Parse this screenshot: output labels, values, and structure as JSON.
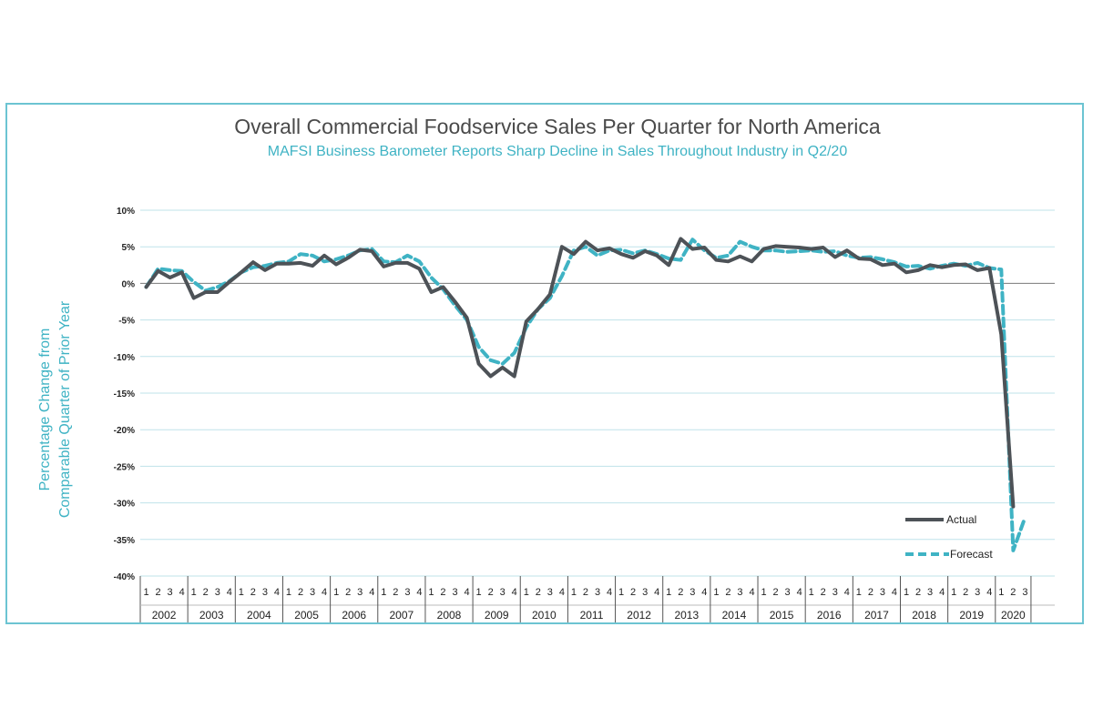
{
  "chart_data": {
    "type": "line",
    "title": "Overall Commercial Foodservice Sales Per Quarter for North America",
    "subtitle": "MAFSI Business Barometer Reports Sharp Decline in Sales Throughout Industry in Q2/20",
    "ylabel_line1": "Percentage Change from",
    "ylabel_line2": "Comparable Quarter of Prior Year",
    "ylim": [
      -40,
      10
    ],
    "yticks": [
      10,
      5,
      0,
      -5,
      -10,
      -15,
      -20,
      -25,
      -30,
      -35,
      -40
    ],
    "ytick_labels": [
      "10%",
      "5%",
      "0%",
      "-5%",
      "-10%",
      "-15%",
      "-20%",
      "-25%",
      "-30%",
      "-35%",
      "-40%"
    ],
    "grid": true,
    "legend_position": "bottom-right",
    "years": [
      {
        "label": "2002",
        "quarters": [
          "1",
          "2",
          "3",
          "4"
        ]
      },
      {
        "label": "2003",
        "quarters": [
          "1",
          "2",
          "3",
          "4"
        ]
      },
      {
        "label": "2004",
        "quarters": [
          "1",
          "2",
          "3",
          "4"
        ]
      },
      {
        "label": "2005",
        "quarters": [
          "1",
          "2",
          "3",
          "4"
        ]
      },
      {
        "label": "2006",
        "quarters": [
          "1",
          "2",
          "3",
          "4"
        ]
      },
      {
        "label": "2007",
        "quarters": [
          "1",
          "2",
          "3",
          "4"
        ]
      },
      {
        "label": "2008",
        "quarters": [
          "1",
          "2",
          "3",
          "4"
        ]
      },
      {
        "label": "2009",
        "quarters": [
          "1",
          "2",
          "3",
          "4"
        ]
      },
      {
        "label": "2010",
        "quarters": [
          "1",
          "2",
          "3",
          "4"
        ]
      },
      {
        "label": "2011",
        "quarters": [
          "1",
          "2",
          "3",
          "4"
        ]
      },
      {
        "label": "2012",
        "quarters": [
          "1",
          "2",
          "3",
          "4"
        ]
      },
      {
        "label": "2013",
        "quarters": [
          "1",
          "2",
          "3",
          "4"
        ]
      },
      {
        "label": "2014",
        "quarters": [
          "1",
          "2",
          "3",
          "4"
        ]
      },
      {
        "label": "2015",
        "quarters": [
          "1",
          "2",
          "3",
          "4"
        ]
      },
      {
        "label": "2016",
        "quarters": [
          "1",
          "2",
          "3",
          "4"
        ]
      },
      {
        "label": "2017",
        "quarters": [
          "1",
          "2",
          "3",
          "4"
        ]
      },
      {
        "label": "2018",
        "quarters": [
          "1",
          "2",
          "3",
          "4"
        ]
      },
      {
        "label": "2019",
        "quarters": [
          "1",
          "2",
          "3",
          "4"
        ]
      },
      {
        "label": "2020",
        "quarters": [
          "1",
          "2",
          "3"
        ]
      }
    ],
    "series": [
      {
        "name": "Actual",
        "color": "#4d5257",
        "style": "solid",
        "values": [
          -0.5,
          1.7,
          0.8,
          1.5,
          -2.0,
          -1.2,
          -1.2,
          0.2,
          1.5,
          2.9,
          1.8,
          2.7,
          2.7,
          2.8,
          2.4,
          3.8,
          2.6,
          3.5,
          4.6,
          4.4,
          2.3,
          2.8,
          2.8,
          2.0,
          -1.2,
          -0.5,
          -2.5,
          -4.7,
          -11.0,
          -12.7,
          -11.5,
          -12.7,
          -5.2,
          -3.5,
          -1.5,
          5.0,
          4.0,
          5.7,
          4.5,
          4.8,
          4.0,
          3.5,
          4.4,
          3.8,
          2.5,
          6.1,
          4.7,
          4.9,
          3.2,
          3.0,
          3.7,
          3.0,
          4.7,
          5.1,
          5.0,
          4.9,
          4.7,
          4.9,
          3.6,
          4.5,
          3.4,
          3.3,
          2.5,
          2.7,
          1.5,
          1.8,
          2.5,
          2.2,
          2.5,
          2.6,
          1.8,
          2.1,
          -7.0,
          -30.5
        ]
      },
      {
        "name": "Forecast",
        "color": "#3fb3c4",
        "style": "dashed",
        "values": [
          -0.5,
          2.0,
          1.8,
          1.7,
          0.2,
          -1.0,
          -0.5,
          0.3,
          1.5,
          2.2,
          2.4,
          2.8,
          3.0,
          4.0,
          3.8,
          3.0,
          3.3,
          3.8,
          4.5,
          4.7,
          3.0,
          2.9,
          3.8,
          3.0,
          0.8,
          -0.8,
          -3.0,
          -5.0,
          -8.7,
          -10.5,
          -11.0,
          -9.5,
          -6.0,
          -3.5,
          -2.0,
          1.0,
          4.5,
          5.0,
          3.8,
          4.5,
          4.6,
          4.1,
          4.5,
          4.0,
          3.4,
          3.2,
          6.0,
          4.5,
          3.5,
          3.8,
          5.7,
          5.0,
          4.5,
          4.5,
          4.3,
          4.4,
          4.5,
          4.3,
          4.4,
          3.8,
          3.5,
          3.6,
          3.3,
          2.9,
          2.3,
          2.4,
          2.0,
          2.4,
          2.7,
          2.4,
          2.8,
          2.1,
          1.9,
          -36.5,
          -32.0
        ]
      }
    ]
  }
}
